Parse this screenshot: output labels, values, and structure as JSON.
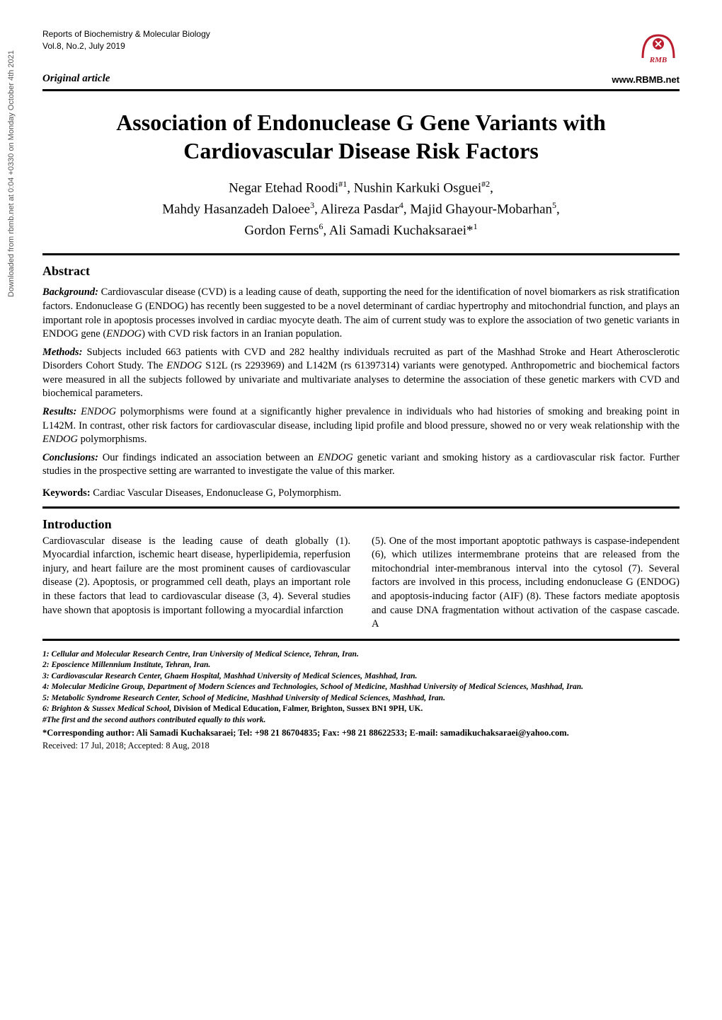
{
  "sidebar_download": "Downloaded from rbmb.net at 0:04 +0330 on Monday October 4th 2021",
  "journal": {
    "name": "Reports of Biochemistry & Molecular Biology",
    "issue": "Vol.8, No.2, July 2019"
  },
  "article_type": "Original article",
  "website": "www.RBMB.net",
  "title": "Association of Endonuclease G Gene Variants with Cardiovascular Disease Risk Factors",
  "authors_html": "Negar Etehad Roodi<sup>#1</sup>, Nushin Karkuki Osguei<sup>#2</sup>,<br>Mahdy Hasanzadeh Daloee<sup>3</sup>, Alireza Pasdar<sup>4</sup>, Majid Ghayour-Mobarhan<sup>5</sup>,<br>Gordon Ferns<sup>6</sup>, Ali Samadi Kuchaksaraei*<sup>1</sup>",
  "abstract": {
    "heading": "Abstract",
    "background_label": "Background:",
    "background": "Cardiovascular disease (CVD) is a leading cause of death, supporting the need for the identification of novel biomarkers as risk stratification factors. Endonuclease G (ENDOG) has recently been suggested to be a novel determinant of cardiac hypertrophy and mitochondrial function, and plays an important role in apoptosis processes involved in cardiac myocyte death. The aim of current study was to explore the association of two genetic variants in ENDOG gene (ENDOG) with CVD risk factors in an Iranian population.",
    "methods_label": "Methods:",
    "methods": "Subjects included 663 patients with CVD and 282 healthy individuals recruited as part of the Mashhad Stroke and Heart Atherosclerotic Disorders Cohort Study. The ENDOG S12L (rs 2293969) and L142M (rs 61397314) variants were genotyped. Anthropometric and biochemical factors were measured in all the subjects followed by univariate and multivariate analyses to determine the association of these genetic markers with CVD and biochemical parameters.",
    "results_label": "Results:",
    "results": "ENDOG polymorphisms were found at a significantly higher prevalence in individuals who had histories of smoking and breaking point in L142M. In contrast, other risk factors for cardiovascular disease, including lipid profile and blood pressure, showed no or very weak relationship with the ENDOG polymorphisms.",
    "conclusions_label": "Conclusions:",
    "conclusions": "Our findings indicated an association between an ENDOG genetic variant and smoking history as a cardiovascular risk factor. Further studies in the prospective setting are warranted to investigate the value of this marker."
  },
  "keywords_label": "Keywords:",
  "keywords": "Cardiac Vascular Diseases, Endonuclease G, Polymorphism.",
  "introduction": {
    "heading": "Introduction",
    "col1": "Cardiovascular disease is the leading cause of death globally (1). Myocardial infarction, ischemic heart disease, hyperlipidemia, reperfusion injury, and heart failure are the most prominent causes of cardiovascular disease (2). Apoptosis, or programmed cell death, plays an important role in these factors that lead to cardiovascular disease (3, 4). Several studies have shown that apoptosis is important following a myocardial infarction",
    "col2": "(5). One of the most important apoptotic pathways is caspase-independent (6), which utilizes intermembrane proteins that are released from the mitochondrial inter-membranous interval into the cytosol (7). Several factors are involved in this process, including endonuclease G (ENDOG) and apoptosis-inducing factor (AIF) (8). These factors mediate apoptosis and cause DNA fragmentation without activation of the caspase cascade. A"
  },
  "affiliations": {
    "a1": "1: Cellular and Molecular Research Centre, Iran University of Medical Science, Tehran, Iran.",
    "a2": "2: Eposcience Millennium Institute, Tehran, Iran.",
    "a3": "3: Cardiovascular Research Center, Ghaem Hospital, Mashhad University of Medical Sciences, Mashhad, Iran.",
    "a4": "4: Molecular Medicine Group, Department of Modern Sciences and Technologies, School of Medicine, Mashhad University of Medical Sciences, Mashhad, Iran.",
    "a5": "5: Metabolic Syndrome Research Center, School of Medicine, Mashhad University of Medical Sciences, Mashhad, Iran.",
    "a6": "6: Brighton & Sussex Medical School, Division of Medical Education, Falmer, Brighton, Sussex BN1 9PH, UK.",
    "equal": "#The first and the second authors contributed equally to this work."
  },
  "corresponding": "*Corresponding author: Ali Samadi Kuchaksaraei; Tel: +98 21 86704835; Fax: +98 21 88622533; E-mail: samadikuchaksaraei@yahoo.com.",
  "received": "Received: 17 Jul, 2018; Accepted: 8 Aug, 2018",
  "colors": {
    "logo_red": "#b91d2e",
    "text": "#000000",
    "bg": "#ffffff"
  }
}
